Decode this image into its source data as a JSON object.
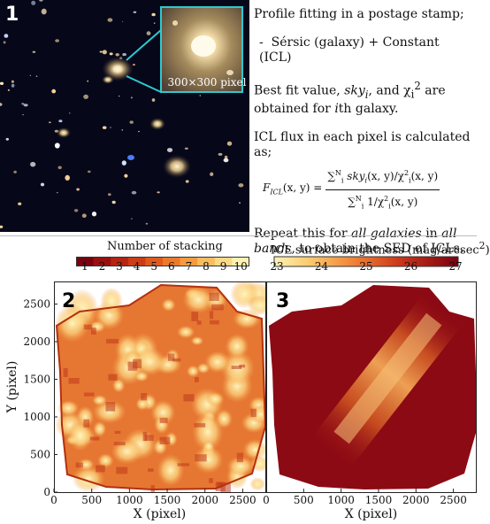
{
  "panel1": {
    "number": "1",
    "stamp_caption": "300×300 pixel",
    "line1": "Profile fitting in a postage stamp;",
    "line2": "Sérsic (galaxy) + Constant (ICL)",
    "line3a": "Best fit value, ",
    "line3b": "sky",
    "line3c": "i",
    "line3d": ", and χ",
    "line3e": "i",
    "line3f": "2",
    "line3g": " are obtained for ",
    "line3h": "i",
    "line3i": "th galaxy.",
    "line4": "ICL flux in each pixel is calculated as;",
    "line5a": "Repeat this for ",
    "line5b": "all galaxies",
    "line5c": " in ",
    "line5d": "all bands",
    "line5e": ", to obtain the SED of ICLs."
  },
  "formula": {
    "lhs": "F",
    "lhs_sub": "ICL",
    "lhs_args": "(x, y) =",
    "num": "∑",
    "num_sup": "N",
    "num_sub": "i",
    "num_body": " sky",
    "num_body_sub": "i",
    "num_body_tail": "(x, y)/χ",
    "num_chi_sup": "2",
    "num_chi_sub": "i",
    "num_end": "(x, y)",
    "den": "∑",
    "den_sup": "N",
    "den_sub": "i",
    "den_body": " 1/χ",
    "den_chi_sup": "2",
    "den_chi_sub": "i",
    "den_end": "(x, y)"
  },
  "colorbar_stacking": {
    "title": "Number of stacking",
    "ticks": [
      "1",
      "2",
      "3",
      "4",
      "5",
      "6",
      "7",
      "8",
      "9",
      "10"
    ],
    "colors": [
      "#7a0010",
      "#9a1010",
      "#b52512",
      "#cb3d17",
      "#de5a1e",
      "#ec7a2a",
      "#f49b3f",
      "#f9bd5f",
      "#fcd985",
      "#fff1b0"
    ]
  },
  "colorbar_icl": {
    "title": "ICL surface brightness (mag/arcsec",
    "title_sup": "2",
    "title_end": ")",
    "ticks": [
      "23",
      "24",
      "25",
      "26",
      "27"
    ]
  },
  "chart_data": [
    {
      "type": "heatmap",
      "panel_label": "2",
      "title": "Number of stacking",
      "xlabel": "X (pixel)",
      "ylabel": "Y (pixel)",
      "xlim": [
        0,
        2800
      ],
      "ylim": [
        0,
        2800
      ],
      "xticks": [
        "0",
        "500",
        "1000",
        "1500",
        "2000",
        "2500"
      ],
      "yticks": [
        "0",
        "500",
        "1000",
        "1500",
        "2000",
        "2500"
      ],
      "color_range": [
        1,
        10
      ]
    },
    {
      "type": "heatmap",
      "panel_label": "3",
      "title": "ICL surface brightness (mag/arcsec2)",
      "xlabel": "X (pixel)",
      "xlim": [
        0,
        2800
      ],
      "ylim": [
        0,
        2800
      ],
      "xticks": [
        "0",
        "500",
        "1000",
        "1500",
        "2000",
        "2500"
      ],
      "color_range": [
        23,
        27
      ]
    }
  ]
}
